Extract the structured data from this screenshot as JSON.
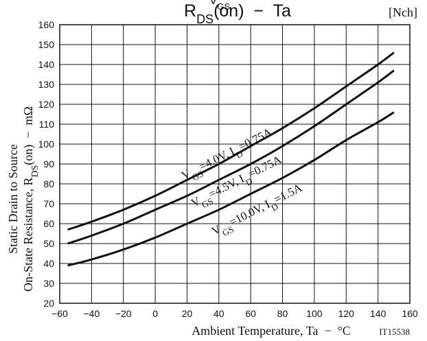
{
  "chart_data": {
    "type": "line",
    "title": "RDS(on) − Ta",
    "title_parts": {
      "main": "R",
      "sub": "DS",
      "rest": "(on)  −  Ta"
    },
    "badge": "[Nch]",
    "figure_code": "IT15538",
    "xlabel": "Ambient Temperature, Ta  −  °C",
    "ylabel_line1": "Static Drain to Source",
    "ylabel_line2_parts": {
      "main": "On-State Resistance, R",
      "sub": "DS",
      "rest": "(on)  −  mΩ"
    },
    "xlim": [
      -60,
      160
    ],
    "ylim": [
      20,
      160
    ],
    "x_ticks": [
      "−60",
      "−40",
      "−20",
      "0",
      "20",
      "40",
      "60",
      "80",
      "100",
      "120",
      "140",
      "160"
    ],
    "x_tick_values": [
      -60,
      -40,
      -20,
      0,
      20,
      40,
      60,
      80,
      100,
      120,
      140,
      160
    ],
    "y_ticks": [
      "20",
      "30",
      "40",
      "50",
      "60",
      "70",
      "80",
      "90",
      "100",
      "110",
      "120",
      "130",
      "140",
      "150",
      "160"
    ],
    "y_tick_values": [
      20,
      30,
      40,
      50,
      60,
      70,
      80,
      90,
      100,
      110,
      120,
      130,
      140,
      150,
      160
    ],
    "grid": true,
    "series": [
      {
        "label_parts": [
          "V",
          "GS",
          "=4.0V, I",
          "D",
          "=0.75A"
        ],
        "x": [
          -55,
          -40,
          -20,
          0,
          20,
          40,
          60,
          80,
          100,
          120,
          140,
          150
        ],
        "y": [
          57,
          61,
          67,
          74,
          82,
          90,
          99,
          108,
          118,
          129,
          140,
          146
        ]
      },
      {
        "label_parts": [
          "V",
          "GS",
          "=4.5V, I",
          "D",
          "=0.75A"
        ],
        "x": [
          -55,
          -40,
          -20,
          0,
          20,
          40,
          60,
          80,
          100,
          120,
          140,
          150
        ],
        "y": [
          50,
          54,
          60,
          67,
          74,
          82,
          90,
          99,
          109,
          120,
          131,
          137
        ]
      },
      {
        "label_parts": [
          "V",
          "GS",
          "=10.0V, I",
          "D",
          "=1.5A"
        ],
        "x": [
          -55,
          -40,
          -20,
          0,
          20,
          40,
          60,
          80,
          100,
          120,
          140,
          150
        ],
        "y": [
          39,
          42,
          47,
          53,
          60,
          67,
          75,
          83,
          92,
          102,
          111,
          116
        ]
      }
    ]
  }
}
